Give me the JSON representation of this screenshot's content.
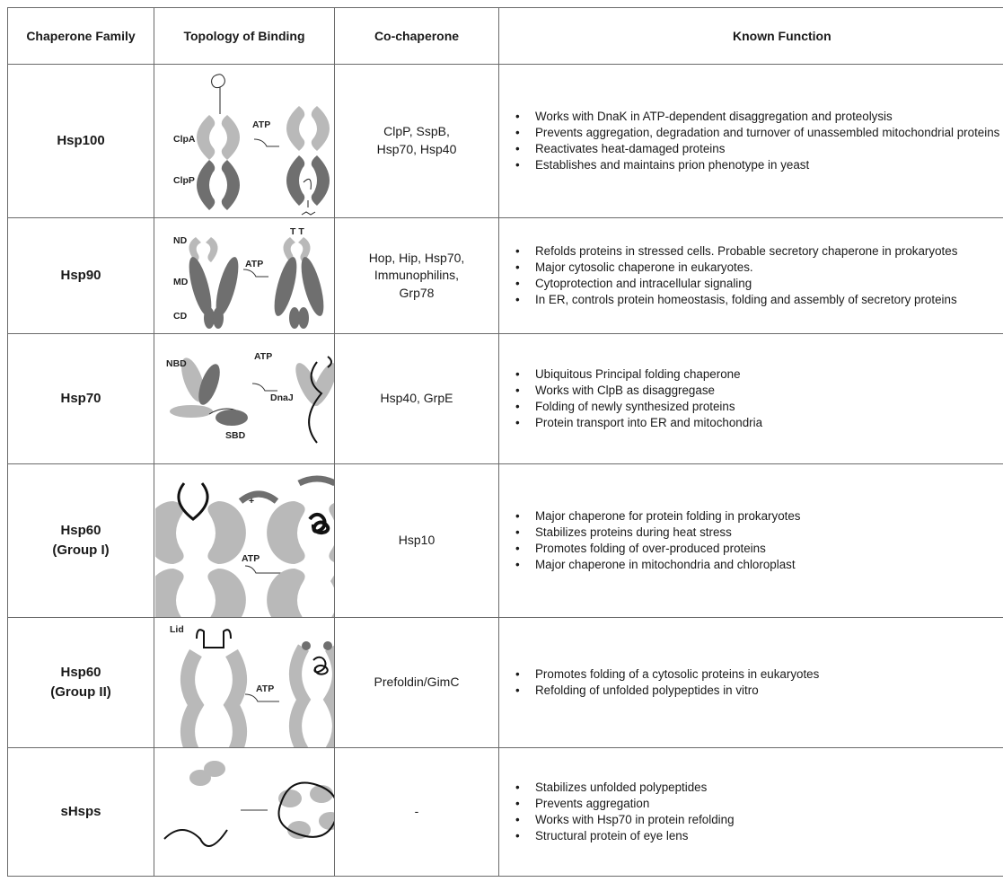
{
  "table": {
    "header": [
      "Chaperone Family",
      "Topology of Binding",
      "Co-chaperone",
      "Known Function"
    ],
    "rows": [
      {
        "family": "Hsp100",
        "diagram_labels": [
          "ClpA",
          "ClpP",
          "ATP"
        ],
        "cochaperone": "ClpP, SspB,\nHsp70, Hsp40",
        "functions": [
          "Works with DnaK in ATP-dependent disaggregation and proteolysis",
          "Prevents aggregation, degradation and turnover of unassembled mitochondrial proteins",
          "Reactivates heat-damaged proteins",
          "Establishes and maintains prion phenotype in yeast"
        ]
      },
      {
        "family": "Hsp90",
        "diagram_labels": [
          "ND",
          "MD",
          "CD",
          "ATP",
          "T T"
        ],
        "cochaperone": "Hop, Hip, Hsp70,\nImmunophilins,\nGrp78",
        "functions": [
          "Refolds proteins in stressed cells. Probable secretory chaperone in prokaryotes",
          "Major cytosolic chaperone in eukaryotes.",
          "Cytoprotection and intracellular signaling",
          "In ER, controls protein homeostasis, folding and assembly of secretory proteins"
        ]
      },
      {
        "family": "Hsp70",
        "diagram_labels": [
          "NBD",
          "ATP",
          "DnaJ",
          "SBD"
        ],
        "cochaperone": "Hsp40, GrpE",
        "functions": [
          "Ubiquitous Principal folding chaperone",
          "Works with ClpB as disaggregase",
          "Folding of newly synthesized proteins",
          "Protein transport into ER and mitochondria"
        ]
      },
      {
        "family": "Hsp60\n(Group I)",
        "diagram_labels": [
          "+",
          "ATP"
        ],
        "cochaperone": "Hsp10",
        "functions": [
          "Major chaperone for protein folding in prokaryotes",
          "Stabilizes proteins during heat stress",
          "Promotes folding of over-produced proteins",
          "Major chaperone in mitochondria and chloroplast"
        ]
      },
      {
        "family": "Hsp60\n(Group II)",
        "diagram_labels": [
          "Lid",
          "ATP"
        ],
        "cochaperone": "Prefoldin/GimC",
        "functions": [
          "Promotes folding of a cytosolic proteins in eukaryotes",
          "Refolding of unfolded polypeptides in vitro"
        ]
      },
      {
        "family": "sHsps",
        "diagram_labels": [],
        "cochaperone": "-",
        "functions": [
          "Stabilizes unfolded polypeptides",
          "Prevents aggregation",
          "Works with Hsp70 in protein refolding",
          "Structural protein of eye lens"
        ]
      }
    ]
  }
}
